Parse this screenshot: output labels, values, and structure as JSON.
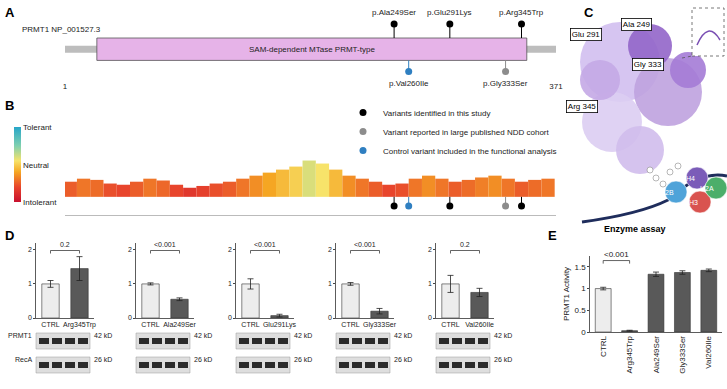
{
  "chart_data": [
    {
      "panel": "A",
      "type": "lollipop",
      "title": "PRMT1 NP_001527.3",
      "xlim": [
        1,
        371
      ],
      "xticks": [
        1,
        371
      ],
      "domain": {
        "label": "SAM-dependent MTase PRMT-type",
        "start": 25,
        "end": 349,
        "color": "#e6b3e8"
      },
      "variants_above": [
        {
          "label": "p.Ala249Ser",
          "position": 249,
          "color": "#000000"
        },
        {
          "label": "p.Glu291Lys",
          "position": 291,
          "color": "#000000"
        },
        {
          "label": "p.Arg345Trp",
          "position": 345,
          "color": "#000000"
        }
      ],
      "variants_below": [
        {
          "label": "p.Val260Ile",
          "position": 260,
          "color": "#2f7fc1"
        },
        {
          "label": "p.Gly333Ser",
          "position": 333,
          "color": "#8c8c8c"
        }
      ]
    },
    {
      "panel": "B",
      "type": "bar",
      "tick_labels": false,
      "xlim": [
        1,
        371
      ],
      "ylim": [
        -0.3,
        1.6
      ],
      "x": [
        5,
        15,
        25,
        35,
        45,
        55,
        65,
        75,
        85,
        95,
        105,
        115,
        125,
        135,
        145,
        155,
        165,
        175,
        185,
        195,
        205,
        215,
        225,
        235,
        245,
        255,
        265,
        275,
        285,
        295,
        305,
        315,
        325,
        335,
        345,
        355,
        365
      ],
      "values": [
        0.25,
        0.3,
        0.28,
        0.22,
        0.2,
        0.25,
        0.3,
        0.27,
        0.2,
        0.15,
        0.18,
        0.22,
        0.25,
        0.3,
        0.35,
        0.4,
        0.45,
        0.5,
        0.6,
        0.55,
        0.45,
        0.35,
        0.3,
        0.25,
        0.2,
        0.22,
        0.3,
        0.35,
        0.3,
        0.25,
        0.28,
        0.32,
        0.35,
        0.3,
        0.25,
        0.28,
        0.3
      ],
      "colorbar": {
        "range": [
          0,
          1
        ],
        "ticks": [
          {
            "value": 1,
            "label": "Tolerant"
          },
          {
            "value": 0.5,
            "label": "Neutral"
          },
          {
            "value": 0,
            "label": "Intolerant"
          }
        ]
      },
      "legend": "upper right",
      "series": [
        {
          "name": "Variants identified in this study",
          "color": "#000000",
          "x": [
            249,
            291,
            345
          ]
        },
        {
          "name": "Variant reported in large published NDD cohort",
          "color": "#8c8c8c",
          "x": [
            333
          ]
        },
        {
          "name": "Control variant included in the functional analysis",
          "color": "#2f7fc1",
          "x": [
            260
          ]
        }
      ]
    },
    {
      "panel": "C",
      "type": "diagram",
      "residue_labels": [
        "Glu 291",
        "Ala 249",
        "Gly 333",
        "Arg 345"
      ],
      "histones": [
        "H2B",
        "H4",
        "H3",
        "H2A"
      ]
    },
    {
      "panel": "D",
      "type": "bar",
      "ylim": [
        0,
        2.2
      ],
      "yticks": [
        0,
        1,
        2
      ],
      "colors": [
        "#ededed",
        "#595959"
      ],
      "blot": {
        "rows": [
          "PRMT1",
          "RecA"
        ],
        "sizes": [
          "42 kD",
          "26 kD"
        ]
      },
      "charts": [
        {
          "categories": [
            "CTRL",
            "Arg345Trp"
          ],
          "values": [
            1,
            1.45
          ],
          "errors": [
            0.1,
            0.35
          ],
          "p_value": "0.2"
        },
        {
          "categories": [
            "CTRL",
            "Ala249Ser"
          ],
          "values": [
            1,
            0.55
          ],
          "errors": [
            0.03,
            0.04
          ],
          "p_value": "<0.001"
        },
        {
          "categories": [
            "CTRL",
            "Glu291Lys"
          ],
          "values": [
            1,
            0.07
          ],
          "errors": [
            0.15,
            0.04
          ],
          "p_value": "<0.001"
        },
        {
          "categories": [
            "CTRL",
            "Gly333Ser"
          ],
          "values": [
            1,
            0.2
          ],
          "errors": [
            0.04,
            0.08
          ],
          "p_value": "<0.001"
        },
        {
          "categories": [
            "CTRL",
            "Val260Ile"
          ],
          "values": [
            1,
            0.75
          ],
          "errors": [
            0.25,
            0.12
          ],
          "p_value": "0.2"
        }
      ]
    },
    {
      "panel": "E",
      "type": "bar",
      "title": "Enzyme assay",
      "y_label": "PRMT1 Activity",
      "categories": [
        "CTRL",
        "Arg345Trp",
        "Ala249Ser",
        "Gly333Ser",
        "Val260Ile"
      ],
      "values": [
        1,
        0.03,
        1.33,
        1.37,
        1.42
      ],
      "errors": [
        0.03,
        0.01,
        0.05,
        0.04,
        0.03
      ],
      "colors": [
        "#ededed",
        "#595959",
        "#595959",
        "#595959",
        "#595959"
      ],
      "ylim": [
        0,
        1.75
      ],
      "yticks": [
        0,
        0.5,
        1,
        1.5
      ],
      "p_value": "<0.001"
    }
  ]
}
